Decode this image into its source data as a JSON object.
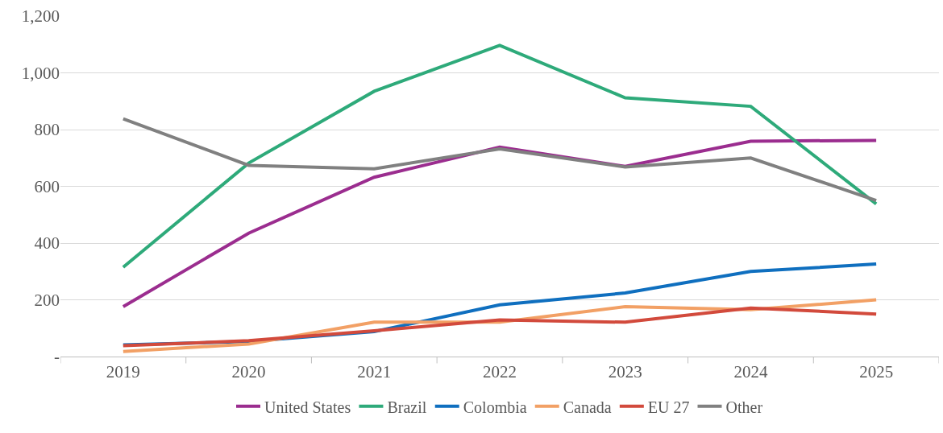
{
  "chart_data": {
    "type": "line",
    "categories": [
      "2019",
      "2020",
      "2021",
      "2022",
      "2023",
      "2024",
      "2025"
    ],
    "series": [
      {
        "name": "United States",
        "color": "#9b2d8f",
        "values": [
          176,
          435,
          632,
          738,
          670,
          759,
          762
        ]
      },
      {
        "name": "Brazil",
        "color": "#2eaa7a",
        "values": [
          315,
          682,
          935,
          1097,
          912,
          882,
          538
        ]
      },
      {
        "name": "Colombia",
        "color": "#0f6fbf",
        "values": [
          41,
          53,
          88,
          182,
          224,
          300,
          326
        ]
      },
      {
        "name": "Canada",
        "color": "#f2a065",
        "values": [
          18,
          44,
          121,
          121,
          176,
          165,
          200
        ]
      },
      {
        "name": "EU 27",
        "color": "#d24a3c",
        "values": [
          38,
          56,
          91,
          129,
          121,
          171,
          150
        ]
      },
      {
        "name": "Other",
        "color": "#808080",
        "values": [
          838,
          674,
          662,
          732,
          668,
          700,
          550
        ]
      }
    ],
    "ylim": [
      0,
      1200
    ],
    "yticks": [
      {
        "value": 0,
        "label": "-"
      },
      {
        "value": 200,
        "label": "200"
      },
      {
        "value": 400,
        "label": "400"
      },
      {
        "value": 600,
        "label": "600"
      },
      {
        "value": 800,
        "label": "800"
      },
      {
        "value": 1000,
        "label": "1,000"
      },
      {
        "value": 1200,
        "label": "1,200"
      }
    ],
    "grid": "y",
    "legend": "bottom",
    "marker": "none",
    "line_style": "solid"
  }
}
